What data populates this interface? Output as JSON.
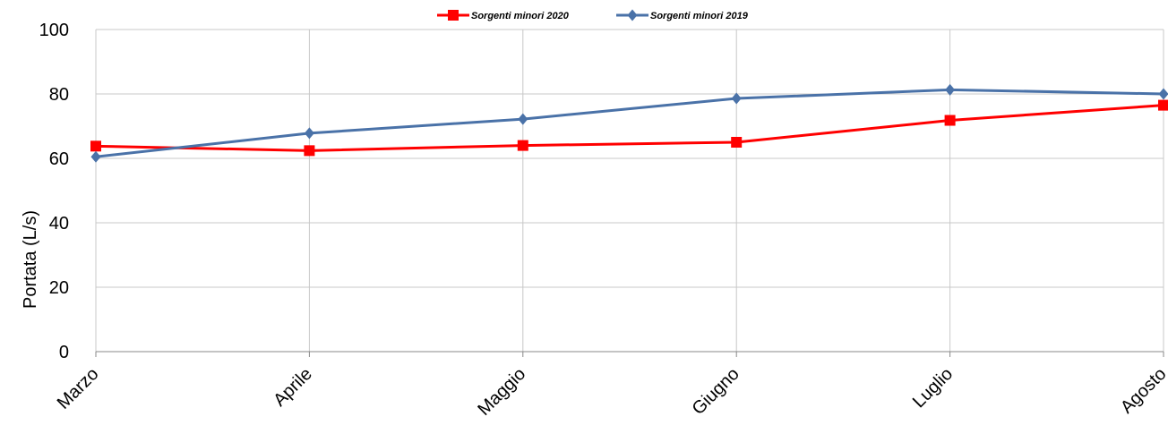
{
  "chart_data": {
    "type": "line",
    "title": "",
    "xlabel": "",
    "ylabel": "Portata (L/s)",
    "categories": [
      "Marzo",
      "Aprile",
      "Maggio",
      "Giugno",
      "Luglio",
      "Agosto"
    ],
    "ylim": [
      0,
      100
    ],
    "yticks": [
      "0",
      "20",
      "40",
      "60",
      "80",
      "100"
    ],
    "grid": true,
    "legend_position": "top-center",
    "series": [
      {
        "name": "Sorgenti minori 2020",
        "color": "#ff0000",
        "marker": "square",
        "values": [
          63.8,
          62.4,
          64.0,
          65.0,
          71.8,
          76.5
        ]
      },
      {
        "name": "Sorgenti minori 2019",
        "color": "#4a72a8",
        "marker": "diamond",
        "values": [
          60.5,
          67.8,
          72.2,
          78.6,
          81.3,
          80.0
        ]
      }
    ]
  }
}
